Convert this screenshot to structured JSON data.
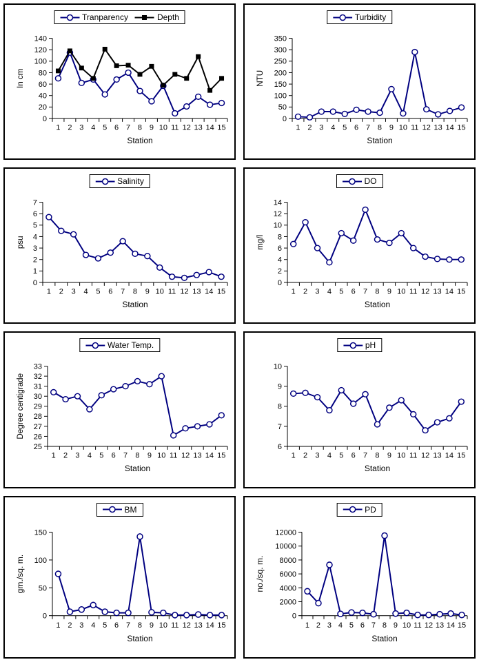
{
  "page": {
    "background": "#ffffff",
    "accent_line_color": "#000080",
    "axis_color": "#000000"
  },
  "chart_data": [
    {
      "id": "transparency-depth",
      "type": "line",
      "xlabel": "Station",
      "ylabel": "In cm",
      "ylim": [
        0,
        140
      ],
      "ytick_step": 20,
      "grid": false,
      "legend_position": "top",
      "categories": [
        "1",
        "2",
        "3",
        "4",
        "5",
        "6",
        "7",
        "8",
        "9",
        "10",
        "11",
        "12",
        "13",
        "14",
        "15"
      ],
      "series": [
        {
          "name": "Tranparency",
          "marker": "circle",
          "color": "#000080",
          "values": [
            70,
            115,
            62,
            68,
            42,
            68,
            80,
            48,
            30,
            57,
            9,
            21,
            38,
            24,
            27
          ]
        },
        {
          "name": "Depth",
          "marker": "square",
          "color": "#000000",
          "values": [
            83,
            118,
            88,
            70,
            121,
            92,
            93,
            77,
            91,
            58,
            77,
            70,
            108,
            49,
            70
          ]
        }
      ]
    },
    {
      "id": "turbidity",
      "type": "line",
      "xlabel": "Station",
      "ylabel": "NTU",
      "ylim": [
        0,
        350
      ],
      "ytick_step": 50,
      "grid": false,
      "legend_position": "top",
      "categories": [
        "1",
        "2",
        "3",
        "4",
        "5",
        "6",
        "7",
        "8",
        "9",
        "10",
        "11",
        "12",
        "13",
        "14",
        "15"
      ],
      "series": [
        {
          "name": "Turbidity",
          "marker": "circle",
          "color": "#000080",
          "values": [
            8,
            5,
            30,
            30,
            20,
            38,
            30,
            25,
            128,
            22,
            290,
            40,
            18,
            33,
            48
          ]
        }
      ]
    },
    {
      "id": "salinity",
      "type": "line",
      "xlabel": "Station",
      "ylabel": "psu",
      "ylim": [
        0,
        7
      ],
      "ytick_step": 1,
      "grid": false,
      "legend_position": "top",
      "categories": [
        "1",
        "2",
        "3",
        "4",
        "5",
        "6",
        "7",
        "8",
        "9",
        "10",
        "11",
        "12",
        "13",
        "14",
        "15"
      ],
      "series": [
        {
          "name": "Salinity",
          "marker": "circle",
          "color": "#000080",
          "values": [
            5.7,
            4.5,
            4.2,
            2.4,
            2.1,
            2.6,
            3.6,
            2.5,
            2.3,
            1.3,
            0.5,
            0.4,
            0.65,
            0.9,
            0.5
          ]
        }
      ]
    },
    {
      "id": "do",
      "type": "line",
      "xlabel": "Station",
      "ylabel": "mg/l",
      "ylim": [
        0,
        14
      ],
      "ytick_step": 2,
      "grid": false,
      "legend_position": "top",
      "categories": [
        "1",
        "2",
        "3",
        "4",
        "5",
        "6",
        "7",
        "8",
        "9",
        "10",
        "11",
        "12",
        "13",
        "14",
        "15"
      ],
      "series": [
        {
          "name": "DO",
          "marker": "circle",
          "color": "#000080",
          "values": [
            6.7,
            10.5,
            6.0,
            3.5,
            8.6,
            7.3,
            12.7,
            7.5,
            6.9,
            8.6,
            6.0,
            4.5,
            4.1,
            4.0,
            4.0
          ]
        }
      ]
    },
    {
      "id": "water-temp",
      "type": "line",
      "xlabel": "Station",
      "ylabel": "Degree centigrade",
      "ylim": [
        25,
        33
      ],
      "ytick_step": 1,
      "grid": false,
      "legend_position": "top",
      "categories": [
        "1",
        "2",
        "3",
        "4",
        "5",
        "6",
        "7",
        "8",
        "9",
        "10",
        "11",
        "12",
        "13",
        "14",
        "15"
      ],
      "series": [
        {
          "name": "Water Temp.",
          "marker": "circle",
          "color": "#000080",
          "values": [
            30.4,
            29.7,
            30.0,
            28.7,
            30.1,
            30.7,
            31.0,
            31.5,
            31.2,
            32.0,
            26.1,
            26.8,
            27.0,
            27.2,
            28.1
          ]
        }
      ]
    },
    {
      "id": "ph",
      "type": "line",
      "xlabel": "Station",
      "ylabel": "",
      "ylim": [
        6,
        10
      ],
      "ytick_step": 1,
      "grid": false,
      "legend_position": "top",
      "categories": [
        "1",
        "2",
        "3",
        "4",
        "5",
        "6",
        "7",
        "8",
        "9",
        "10",
        "11",
        "12",
        "13",
        "14",
        "15"
      ],
      "series": [
        {
          "name": "pH",
          "marker": "circle",
          "color": "#000080",
          "values": [
            8.63,
            8.67,
            8.45,
            7.8,
            8.8,
            8.13,
            8.6,
            7.1,
            7.93,
            8.3,
            7.6,
            6.8,
            7.2,
            7.4,
            8.23
          ]
        }
      ]
    },
    {
      "id": "bm",
      "type": "line",
      "xlabel": "Station",
      "ylabel": "gm./sq. m.",
      "ylim": [
        0,
        150
      ],
      "ytick_step": 50,
      "grid": false,
      "legend_position": "top",
      "categories": [
        "1",
        "2",
        "3",
        "4",
        "5",
        "6",
        "7",
        "8",
        "9",
        "10",
        "11",
        "12",
        "13",
        "14",
        "15"
      ],
      "series": [
        {
          "name": "BM",
          "marker": "circle",
          "color": "#000080",
          "values": [
            75,
            7,
            11,
            19,
            7,
            5,
            5,
            142,
            6,
            5,
            1,
            1,
            2,
            1,
            1
          ]
        }
      ]
    },
    {
      "id": "pd",
      "type": "line",
      "xlabel": "Station",
      "ylabel": "no./sq. m.",
      "ylim": [
        0,
        12000
      ],
      "ytick_step": 2000,
      "grid": false,
      "legend_position": "top",
      "categories": [
        "1",
        "2",
        "3",
        "4",
        "5",
        "6",
        "7",
        "8",
        "9",
        "10",
        "11",
        "12",
        "13",
        "14",
        "15"
      ],
      "series": [
        {
          "name": "PD",
          "marker": "circle",
          "color": "#000080",
          "values": [
            3500,
            1800,
            7300,
            250,
            450,
            400,
            200,
            11500,
            300,
            400,
            100,
            100,
            200,
            300,
            100
          ]
        }
      ]
    }
  ]
}
